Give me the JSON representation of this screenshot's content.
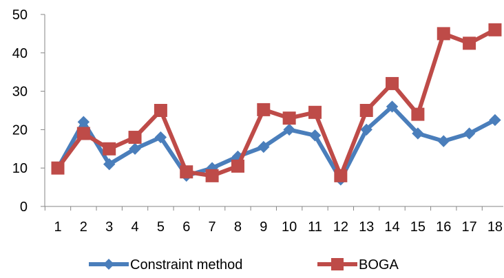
{
  "chart_data": {
    "type": "line",
    "categories": [
      "1",
      "2",
      "3",
      "4",
      "5",
      "6",
      "7",
      "8",
      "9",
      "10",
      "11",
      "12",
      "13",
      "14",
      "15",
      "16",
      "17",
      "18"
    ],
    "y_ticks": [
      "0",
      "10",
      "20",
      "30",
      "40",
      "50"
    ],
    "ylim": [
      0,
      50
    ],
    "grid": false,
    "legend_position": "bottom",
    "series": [
      {
        "name": "Constraint method",
        "color": "#4a7ebb",
        "marker": "diamond",
        "values": [
          10,
          22,
          11,
          15,
          18,
          8,
          10,
          13,
          15.5,
          20,
          18.5,
          7,
          20,
          26,
          19,
          17,
          19,
          22.5
        ]
      },
      {
        "name": "BOGA",
        "color": "#be4b48",
        "marker": "square",
        "values": [
          10,
          19,
          15,
          18,
          25,
          9,
          8,
          10.5,
          25.2,
          23,
          24.5,
          8,
          25,
          32,
          24,
          45,
          42.5,
          46
        ]
      }
    ]
  }
}
